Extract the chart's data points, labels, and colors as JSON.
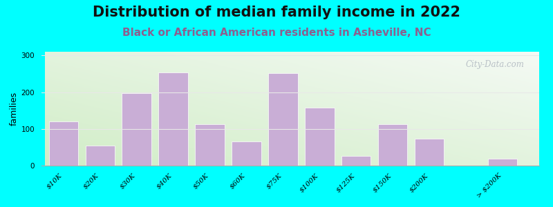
{
  "title": "Distribution of median family income in 2022",
  "subtitle": "Black or African American residents in Asheville, NC",
  "ylabel": "families",
  "background_color": "#00FFFF",
  "bar_color": "#c9aed6",
  "bar_edge_color": "#ffffff",
  "categories": [
    "$10K",
    "$20K",
    "$30K",
    "$40K",
    "$50K",
    "$60K",
    "$75K",
    "$100K",
    "$125K",
    "$150K",
    "$200K",
    "> $200K"
  ],
  "values": [
    120,
    55,
    197,
    253,
    112,
    65,
    252,
    158,
    27,
    113,
    73,
    18
  ],
  "x_positions": [
    0,
    1,
    2,
    3,
    4,
    5,
    6,
    7,
    8,
    9,
    10,
    12
  ],
  "ylim": [
    0,
    310
  ],
  "yticks": [
    0,
    100,
    200,
    300
  ],
  "title_fontsize": 15,
  "subtitle_fontsize": 11,
  "subtitle_color": "#8B6090",
  "ylabel_fontsize": 9,
  "tick_fontsize": 7.5,
  "bar_width": 0.8,
  "watermark": "City-Data.com",
  "watermark_color": "#b0b8c0",
  "grid_color": "#e8e8e8"
}
